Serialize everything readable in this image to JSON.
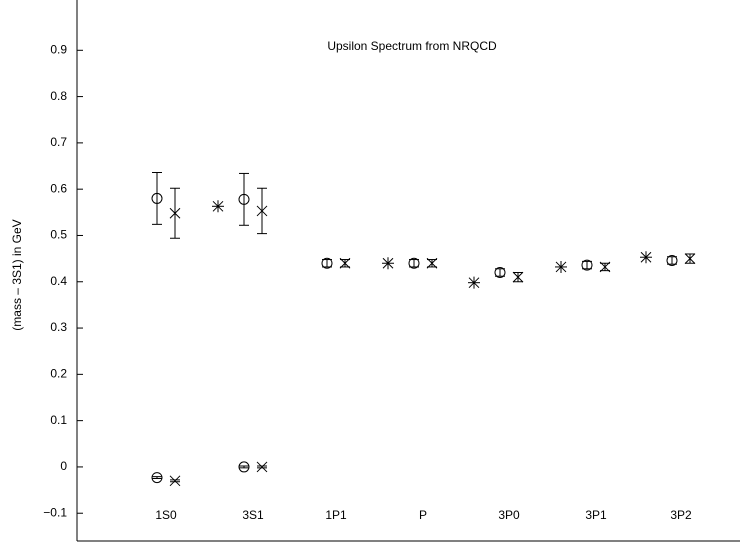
{
  "chart_data": {
    "type": "errorbar",
    "title": "Upsilon Spectrum from NRQCD",
    "y_label": "(mass – 3S1) in GeV",
    "categories": [
      "1S0",
      "3S1",
      "1P1",
      "P",
      "3P0",
      "3P1",
      "3P2"
    ],
    "ylim": [
      -0.16,
      1.0
    ],
    "yticks": [
      {
        "value": -0.1,
        "label": "−0.1"
      },
      0,
      0.1,
      0.2,
      0.3,
      0.4,
      0.5,
      0.6,
      0.7,
      0.8,
      0.9
    ],
    "series": [
      {
        "marker": "circle",
        "color": "#000000",
        "values": [
          0.58,
          0.578,
          0.44,
          0.44,
          0.42,
          0.436,
          0.446
        ],
        "errors": [
          0.056,
          0.056,
          0.008,
          0.008,
          0.008,
          0.008,
          0.008
        ]
      },
      {
        "marker": "x",
        "color": "#000000",
        "values": [
          0.548,
          0.553,
          0.44,
          0.44,
          0.41,
          0.432,
          0.45
        ],
        "errors": [
          0.054,
          0.049,
          0.008,
          0.008,
          0.01,
          0.008,
          0.01
        ]
      },
      {
        "marker": "asterisk",
        "color": "#000000",
        "values": [
          null,
          0.563,
          null,
          0.44,
          0.398,
          0.432,
          0.453
        ]
      },
      {
        "marker": "circle",
        "color": "#000000",
        "values": [
          -0.023,
          0.0,
          null,
          null,
          null,
          null,
          null
        ],
        "errors": [
          0.002,
          0.002,
          null,
          null,
          null,
          null,
          null
        ]
      },
      {
        "marker": "x",
        "color": "#000000",
        "values": [
          -0.03,
          0.0,
          null,
          null,
          null,
          null,
          null
        ],
        "errors": [
          0.002,
          0.002,
          null,
          null,
          null,
          null,
          null
        ]
      }
    ]
  }
}
